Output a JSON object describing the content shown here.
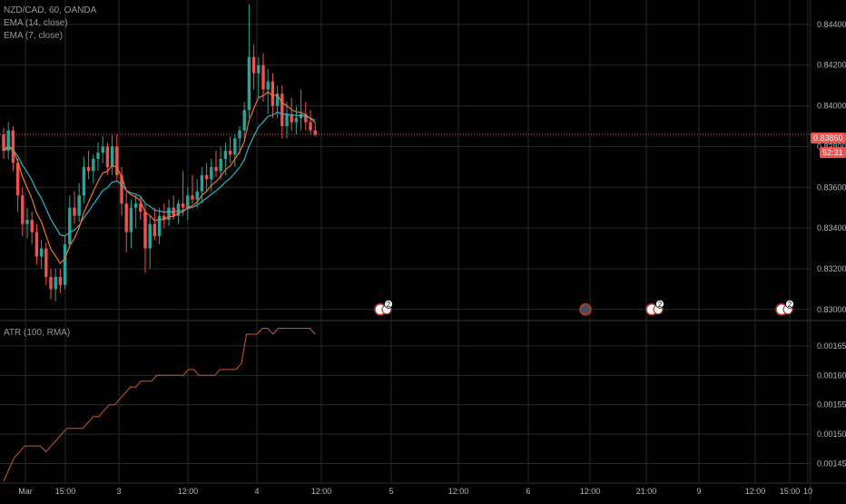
{
  "legend": {
    "symbol": "NZD/CAD, 60, OANDA",
    "ema14": "EMA (14, close)",
    "ema7": "EMA (7, close)",
    "atr": "ATR (100, RMA)"
  },
  "price_axis": {
    "ticks": [
      "0.84400",
      "0.84200",
      "0.84000",
      "0.83800",
      "0.83600",
      "0.83400",
      "0.83200",
      "0.83000"
    ],
    "current_price": "0.83860",
    "countdown": "52:31"
  },
  "atr_axis": {
    "ticks": [
      "0.00165",
      "0.00160",
      "0.00155",
      "0.00150",
      "0.00145"
    ]
  },
  "time_axis": {
    "ticks": [
      "Mar",
      "15:00",
      "3",
      "12:00",
      "4",
      "12:00",
      "5",
      "12:00",
      "6",
      "12:00",
      "21:00",
      "9",
      "12:00",
      "15:00",
      "10"
    ]
  },
  "event_badges": [
    "2",
    "0",
    "2",
    "2"
  ],
  "colors": {
    "up": "#26a69a",
    "down": "#ef5350",
    "ema14": "#2bb5c9",
    "ema7": "#f5732a",
    "atr": "#d05a24",
    "grid": "#2a2a2a",
    "price_line": "#ef5350"
  },
  "chart_data": {
    "type": "candlestick",
    "series": [
      {
        "name": "NZD/CAD",
        "kind": "ohlc",
        "x": "hourly bars from Mar 2 to Mar 4",
        "values": [
          [
            0.8386,
            0.8389,
            0.8374,
            0.8378
          ],
          [
            0.8378,
            0.8392,
            0.8374,
            0.8388
          ],
          [
            0.8388,
            0.839,
            0.8368,
            0.8372
          ],
          [
            0.8372,
            0.8374,
            0.8348,
            0.8356
          ],
          [
            0.8356,
            0.836,
            0.8336,
            0.8342
          ],
          [
            0.8342,
            0.835,
            0.8335,
            0.8344
          ],
          [
            0.8344,
            0.8348,
            0.8332,
            0.8338
          ],
          [
            0.8338,
            0.8342,
            0.8322,
            0.8326
          ],
          [
            0.8326,
            0.8334,
            0.832,
            0.833
          ],
          [
            0.833,
            0.8333,
            0.8312,
            0.8316
          ],
          [
            0.8316,
            0.832,
            0.8305,
            0.831
          ],
          [
            0.831,
            0.832,
            0.8304,
            0.8316
          ],
          [
            0.8316,
            0.832,
            0.8308,
            0.8312
          ],
          [
            0.8312,
            0.8336,
            0.831,
            0.8332
          ],
          [
            0.8332,
            0.8356,
            0.833,
            0.835
          ],
          [
            0.835,
            0.8358,
            0.8342,
            0.8346
          ],
          [
            0.8346,
            0.8362,
            0.8343,
            0.8356
          ],
          [
            0.8356,
            0.8375,
            0.8352,
            0.837
          ],
          [
            0.837,
            0.8378,
            0.8364,
            0.8368
          ],
          [
            0.8368,
            0.8376,
            0.8362,
            0.8374
          ],
          [
            0.8374,
            0.8382,
            0.8368,
            0.8377
          ],
          [
            0.8377,
            0.8385,
            0.8372,
            0.838
          ],
          [
            0.838,
            0.8382,
            0.8366,
            0.837
          ],
          [
            0.837,
            0.8386,
            0.8366,
            0.838
          ],
          [
            0.838,
            0.8386,
            0.8363,
            0.8366
          ],
          [
            0.8366,
            0.837,
            0.8346,
            0.8352
          ],
          [
            0.8352,
            0.8358,
            0.8328,
            0.8338
          ],
          [
            0.8338,
            0.8354,
            0.833,
            0.835
          ],
          [
            0.835,
            0.8356,
            0.834,
            0.8352
          ],
          [
            0.8352,
            0.8356,
            0.8344,
            0.8348
          ],
          [
            0.8348,
            0.8352,
            0.8318,
            0.833
          ],
          [
            0.833,
            0.8346,
            0.832,
            0.8342
          ],
          [
            0.8342,
            0.835,
            0.8334,
            0.8336
          ],
          [
            0.8336,
            0.835,
            0.8332,
            0.8346
          ],
          [
            0.8346,
            0.8352,
            0.834,
            0.8344
          ],
          [
            0.8344,
            0.8354,
            0.8341,
            0.835
          ],
          [
            0.835,
            0.8356,
            0.8344,
            0.8346
          ],
          [
            0.8346,
            0.8354,
            0.8342,
            0.8352
          ],
          [
            0.8352,
            0.8368,
            0.8346,
            0.835
          ],
          [
            0.835,
            0.836,
            0.8344,
            0.8356
          ],
          [
            0.8356,
            0.8366,
            0.8352,
            0.8354
          ],
          [
            0.8354,
            0.8364,
            0.835,
            0.8358
          ],
          [
            0.8358,
            0.837,
            0.8352,
            0.8366
          ],
          [
            0.8366,
            0.8372,
            0.8358,
            0.8364
          ],
          [
            0.8364,
            0.8374,
            0.8358,
            0.837
          ],
          [
            0.837,
            0.8378,
            0.8365,
            0.8368
          ],
          [
            0.8368,
            0.838,
            0.8364,
            0.8374
          ],
          [
            0.8374,
            0.8382,
            0.8366,
            0.8378
          ],
          [
            0.8378,
            0.8385,
            0.8372,
            0.8376
          ],
          [
            0.8376,
            0.8386,
            0.837,
            0.8384
          ],
          [
            0.8384,
            0.839,
            0.8376,
            0.8388
          ],
          [
            0.8388,
            0.8402,
            0.8384,
            0.8398
          ],
          [
            0.8398,
            0.845,
            0.8394,
            0.8424
          ],
          [
            0.8424,
            0.843,
            0.8408,
            0.8416
          ],
          [
            0.8416,
            0.8424,
            0.8404,
            0.842
          ],
          [
            0.842,
            0.8426,
            0.8402,
            0.8408
          ],
          [
            0.8408,
            0.8418,
            0.8396,
            0.8412
          ],
          [
            0.8412,
            0.8416,
            0.8394,
            0.84
          ],
          [
            0.84,
            0.841,
            0.8394,
            0.8406
          ],
          [
            0.8406,
            0.841,
            0.8384,
            0.839
          ],
          [
            0.839,
            0.8402,
            0.8384,
            0.8396
          ],
          [
            0.8396,
            0.8404,
            0.8388,
            0.8392
          ],
          [
            0.8392,
            0.84,
            0.8386,
            0.8394
          ],
          [
            0.8394,
            0.8408,
            0.8388,
            0.8396
          ],
          [
            0.8396,
            0.8402,
            0.8388,
            0.8392
          ],
          [
            0.8392,
            0.8398,
            0.8386,
            0.8388
          ],
          [
            0.8388,
            0.8392,
            0.8385,
            0.8386
          ]
        ]
      },
      {
        "name": "EMA (14, close)",
        "kind": "line"
      },
      {
        "name": "EMA (7, close)",
        "kind": "line"
      },
      {
        "name": "ATR (100, RMA)",
        "kind": "line",
        "values": [
          0.00142,
          0.00144,
          0.00146,
          0.00147,
          0.00148,
          0.00148,
          0.00148,
          0.00148,
          0.00147,
          0.00148,
          0.00149,
          0.0015,
          0.00151,
          0.00151,
          0.00151,
          0.00151,
          0.00152,
          0.00153,
          0.00153,
          0.00154,
          0.00155,
          0.00155,
          0.00156,
          0.00157,
          0.00158,
          0.00158,
          0.00159,
          0.00159,
          0.00159,
          0.0016,
          0.0016,
          0.0016,
          0.0016,
          0.0016,
          0.0016,
          0.00161,
          0.00161,
          0.0016,
          0.0016,
          0.0016,
          0.0016,
          0.00161,
          0.00161,
          0.00161,
          0.00161,
          0.00162,
          0.00167,
          0.00167,
          0.00167,
          0.00168,
          0.00168,
          0.00167,
          0.00168,
          0.00168,
          0.00168,
          0.00168,
          0.00168,
          0.00168,
          0.00168,
          0.00167
        ]
      }
    ],
    "price_ylim": [
      0.8295,
      0.8452
    ],
    "atr_ylim": [
      0.00142,
      0.00169
    ],
    "grid": true
  }
}
